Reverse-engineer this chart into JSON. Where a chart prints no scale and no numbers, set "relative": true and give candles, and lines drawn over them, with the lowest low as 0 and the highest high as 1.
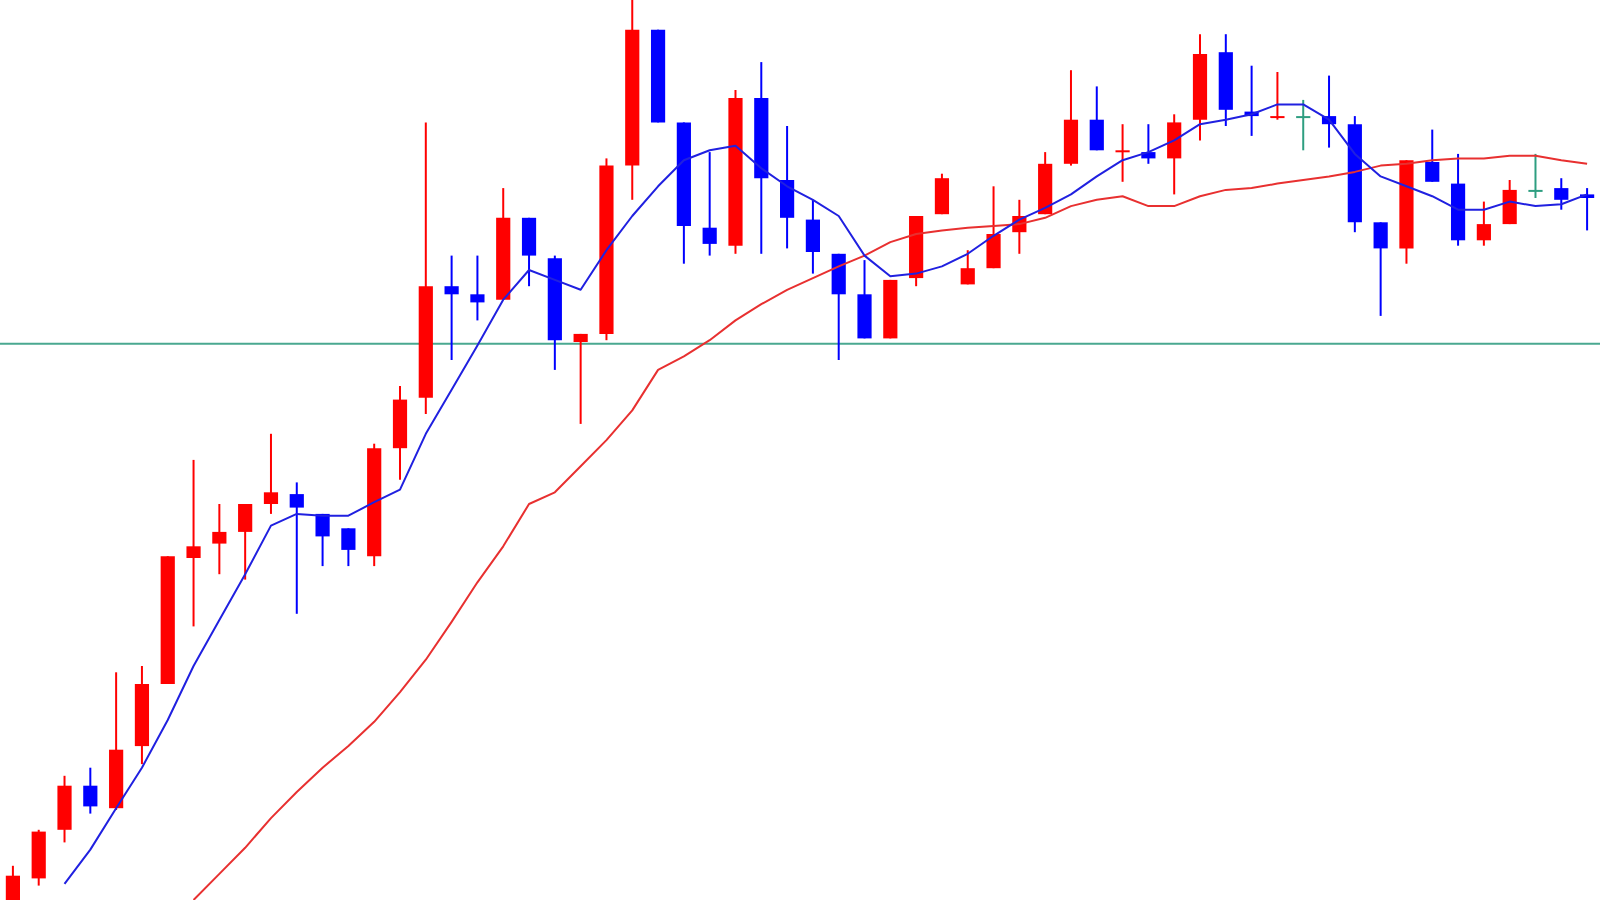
{
  "chart_data": {
    "type": "candlestick",
    "relative": true,
    "categories": [
      null,
      null,
      null,
      null,
      null,
      null,
      null,
      null,
      null,
      null,
      null,
      null,
      null,
      null,
      null,
      null,
      null,
      null,
      null,
      null,
      null,
      null,
      null,
      null,
      null,
      null,
      null,
      null,
      null,
      null,
      null,
      null,
      null,
      null,
      null,
      null,
      null,
      null,
      null,
      null,
      null,
      null,
      null,
      null,
      null,
      null,
      null,
      null,
      null,
      null,
      null,
      null,
      null,
      null,
      null,
      null,
      null,
      null,
      null,
      null,
      null,
      null
    ],
    "ohlc": [
      [
        0,
        0.038,
        0,
        0.027
      ],
      [
        0.024,
        0.078,
        0.016,
        0.076
      ],
      [
        0.078,
        0.138,
        0.064,
        0.127
      ],
      [
        0.127,
        0.147,
        0.096,
        0.104
      ],
      [
        0.102,
        0.253,
        0.1,
        0.167
      ],
      [
        0.171,
        0.26,
        0.151,
        0.24
      ],
      [
        0.24,
        0.382,
        0.24,
        0.382
      ],
      [
        0.38,
        0.489,
        0.304,
        0.393
      ],
      [
        0.396,
        0.44,
        0.362,
        0.409
      ],
      [
        0.409,
        0.44,
        0.356,
        0.44
      ],
      [
        0.44,
        0.518,
        0.429,
        0.453
      ],
      [
        0.451,
        0.464,
        0.318,
        0.436
      ],
      [
        0.429,
        0.429,
        0.371,
        0.404
      ],
      [
        0.413,
        0.413,
        0.371,
        0.389
      ],
      [
        0.382,
        0.507,
        0.371,
        0.502
      ],
      [
        0.502,
        0.571,
        0.467,
        0.556
      ],
      [
        0.558,
        0.864,
        0.54,
        0.682
      ],
      [
        0.682,
        0.716,
        0.6,
        0.673
      ],
      [
        0.673,
        0.716,
        0.644,
        0.664
      ],
      [
        0.667,
        0.791,
        0.667,
        0.758
      ],
      [
        0.758,
        0.758,
        0.682,
        0.716
      ],
      [
        0.713,
        0.716,
        0.589,
        0.622
      ],
      [
        0.62,
        0.629,
        0.529,
        0.629
      ],
      [
        0.629,
        0.824,
        0.622,
        0.816
      ],
      [
        0.816,
        1,
        0.778,
        0.967
      ],
      [
        0.967,
        0.967,
        0.864,
        0.864
      ],
      [
        0.864,
        0.864,
        0.707,
        0.749
      ],
      [
        0.747,
        0.831,
        0.716,
        0.729
      ],
      [
        0.727,
        0.9,
        0.718,
        0.891
      ],
      [
        0.891,
        0.931,
        0.718,
        0.802
      ],
      [
        0.8,
        0.86,
        0.724,
        0.758
      ],
      [
        0.756,
        0.778,
        0.696,
        0.72
      ],
      [
        0.718,
        0.718,
        0.6,
        0.673
      ],
      [
        0.673,
        0.711,
        0.624,
        0.624
      ],
      [
        0.624,
        0.689,
        0.624,
        0.689
      ],
      [
        0.691,
        0.76,
        0.682,
        0.76
      ],
      [
        0.762,
        0.807,
        0.762,
        0.802
      ],
      [
        0.684,
        0.722,
        0.684,
        0.702
      ],
      [
        0.702,
        0.793,
        0.702,
        0.74
      ],
      [
        0.742,
        0.778,
        0.718,
        0.76
      ],
      [
        0.762,
        0.831,
        0.762,
        0.818
      ],
      [
        0.818,
        0.922,
        0.816,
        0.867
      ],
      [
        0.867,
        0.904,
        0.833,
        0.833
      ],
      [
        0.831,
        0.862,
        0.798,
        0.833
      ],
      [
        0.831,
        0.862,
        0.818,
        0.824
      ],
      [
        0.824,
        0.873,
        0.784,
        0.864
      ],
      [
        0.867,
        0.962,
        0.844,
        0.94
      ],
      [
        0.942,
        0.962,
        0.86,
        0.878
      ],
      [
        0.876,
        0.927,
        0.849,
        0.871
      ],
      [
        0.869,
        0.92,
        0.867,
        0.871
      ],
      [
        0.871,
        0.889,
        0.833,
        0.871
      ],
      [
        0.871,
        0.916,
        0.836,
        0.862
      ],
      [
        0.862,
        0.871,
        0.742,
        0.753
      ],
      [
        0.753,
        0.753,
        0.649,
        0.724
      ],
      [
        0.724,
        0.822,
        0.707,
        0.822
      ],
      [
        0.82,
        0.856,
        0.798,
        0.798
      ],
      [
        0.796,
        0.829,
        0.727,
        0.733
      ],
      [
        0.733,
        0.776,
        0.727,
        0.751
      ],
      [
        0.751,
        0.8,
        0.751,
        0.789
      ],
      [
        0.789,
        0.829,
        0.78,
        0.789
      ],
      [
        0.791,
        0.802,
        0.767,
        0.778
      ],
      [
        0.784,
        0.791,
        0.744,
        0.78
      ]
    ],
    "colors": [
      "#ff0000",
      "#ff0000",
      "#ff0000",
      "#0000ff",
      "#ff0000",
      "#ff0000",
      "#ff0000",
      "#ff0000",
      "#ff0000",
      "#ff0000",
      "#ff0000",
      "#0000ff",
      "#0000ff",
      "#0000ff",
      "#ff0000",
      "#ff0000",
      "#ff0000",
      "#0000ff",
      "#0000ff",
      "#ff0000",
      "#0000ff",
      "#0000ff",
      "#ff0000",
      "#ff0000",
      "#ff0000",
      "#0000ff",
      "#0000ff",
      "#0000ff",
      "#ff0000",
      "#0000ff",
      "#0000ff",
      "#0000ff",
      "#0000ff",
      "#0000ff",
      "#ff0000",
      "#ff0000",
      "#ff0000",
      "#ff0000",
      "#ff0000",
      "#ff0000",
      "#ff0000",
      "#ff0000",
      "#0000ff",
      "#ff0000",
      "#0000ff",
      "#ff0000",
      "#ff0000",
      "#0000ff",
      "#0000ff",
      "#ff0000",
      "#2e9e80",
      "#0000ff",
      "#0000ff",
      "#0000ff",
      "#ff0000",
      "#0000ff",
      "#0000ff",
      "#ff0000",
      "#ff0000",
      "#2e9e80",
      "#0000ff",
      "#0000ff"
    ],
    "series": [
      {
        "type": "line",
        "color": "#2020e0",
        "values": [
          null,
          null,
          0.018,
          0.056,
          0.102,
          0.147,
          0.2,
          0.26,
          0.311,
          0.362,
          0.416,
          0.429,
          0.427,
          0.427,
          0.442,
          0.456,
          0.518,
          0.567,
          0.616,
          0.667,
          0.7,
          0.689,
          0.678,
          0.722,
          0.76,
          0.793,
          0.822,
          0.833,
          0.838,
          0.813,
          0.793,
          0.778,
          0.76,
          0.716,
          0.693,
          0.696,
          0.704,
          0.718,
          0.738,
          0.756,
          0.769,
          0.784,
          0.804,
          0.822,
          0.831,
          0.844,
          0.862,
          0.867,
          0.873,
          0.884,
          0.884,
          0.867,
          0.829,
          0.804,
          0.793,
          0.782,
          0.767,
          0.767,
          0.776,
          0.771,
          0.773,
          0.784
        ]
      },
      {
        "type": "line",
        "color": "#e83030",
        "values": [
          null,
          null,
          null,
          null,
          null,
          null,
          null,
          0,
          0.029,
          0.058,
          0.091,
          0.12,
          0.147,
          0.171,
          0.198,
          0.231,
          0.267,
          0.309,
          0.353,
          0.393,
          0.44,
          0.453,
          0.482,
          0.511,
          0.544,
          0.589,
          0.604,
          0.622,
          0.644,
          0.662,
          0.678,
          0.691,
          0.704,
          0.716,
          0.731,
          0.74,
          0.744,
          0.747,
          0.749,
          0.751,
          0.758,
          0.771,
          0.778,
          0.782,
          0.771,
          0.771,
          0.782,
          0.789,
          0.791,
          0.796,
          0.8,
          0.804,
          0.809,
          0.816,
          0.818,
          0.822,
          0.824,
          0.824,
          0.827,
          0.827,
          0.822,
          0.818
        ]
      }
    ],
    "ref_lines": [
      {
        "axis": "y",
        "value": 0.618,
        "color": "#4aa890"
      }
    ]
  }
}
